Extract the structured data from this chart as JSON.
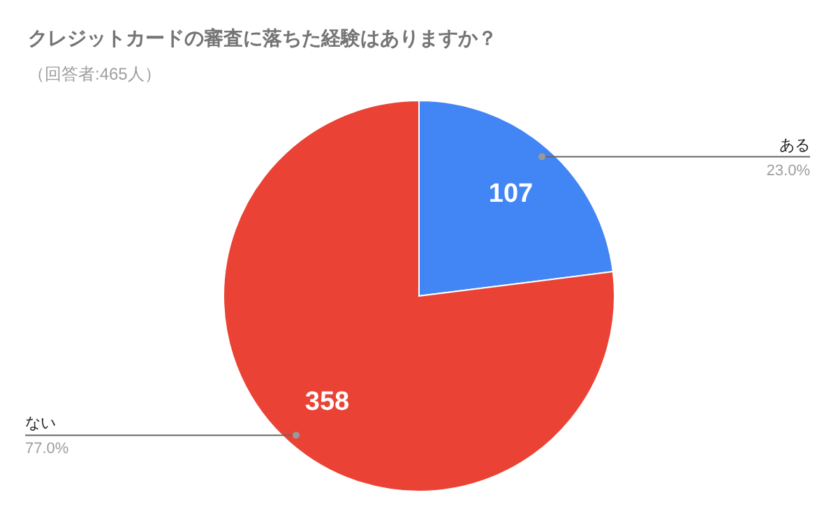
{
  "chart_data": {
    "type": "pie",
    "title": "クレジットカードの審査に落ちた経験はありますか？",
    "subtitle": "（回答者:465人）",
    "categories": [
      "ある",
      "ない"
    ],
    "values": [
      107,
      358
    ],
    "colors": [
      "#4285f4",
      "#ea4335"
    ],
    "data_labels": true,
    "annotations": [
      "23.0%",
      "77.0%"
    ],
    "legend": false
  }
}
